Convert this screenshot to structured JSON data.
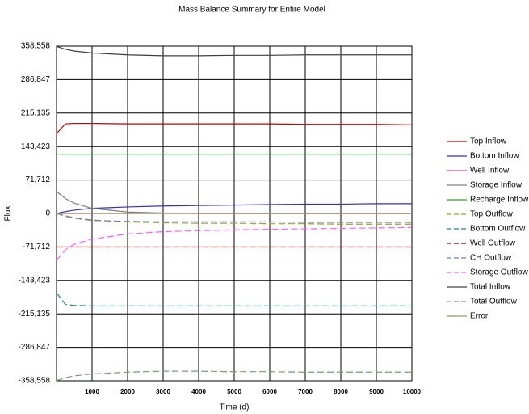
{
  "chart_data": {
    "type": "line",
    "title": "Mass Balance Summary for Entire Model",
    "x_label": "Time (d)",
    "y_label": "Flux",
    "x": [
      0,
      250,
      500,
      1000,
      2000,
      3000,
      4000,
      5000,
      6000,
      7000,
      8000,
      9000,
      10000
    ],
    "xlim": [
      0,
      10000
    ],
    "xticks": [
      1000,
      2000,
      3000,
      4000,
      5000,
      6000,
      7000,
      8000,
      9000,
      10000
    ],
    "ylim": [
      -358558,
      358558
    ],
    "yticks": [
      {
        "value": 358558,
        "label": "358,558"
      },
      {
        "value": 286847,
        "label": "286,847"
      },
      {
        "value": 215135,
        "label": "215,135"
      },
      {
        "value": 143423,
        "label": "143,423"
      },
      {
        "value": 71712,
        "label": "71,712"
      },
      0,
      {
        "value": -71712,
        "label": "-71,712"
      },
      {
        "value": -143423,
        "label": "-143,423"
      },
      {
        "value": -215135,
        "label": "-215,135"
      },
      {
        "value": -286847,
        "label": "-286,847"
      },
      {
        "value": -358558,
        "label": "-358,558"
      }
    ],
    "grid": true,
    "series": [
      {
        "name": "Top Inflow",
        "color": "#c00000",
        "dashed": false,
        "values": [
          171000,
          192000,
          193000,
          193000,
          192000,
          192000,
          192000,
          192000,
          192000,
          191000,
          191000,
          191000,
          190000
        ]
      },
      {
        "name": "Bottom Inflow",
        "color": "#3030c0",
        "dashed": false,
        "values": [
          0,
          4000,
          7000,
          11000,
          14000,
          16000,
          17000,
          18000,
          19000,
          20000,
          20000,
          21000,
          21000
        ]
      },
      {
        "name": "Well Inflow",
        "color": "#c040c0",
        "dashed": false,
        "values": [
          0,
          0,
          0,
          0,
          0,
          0,
          0,
          0,
          0,
          0,
          0,
          0,
          0
        ]
      },
      {
        "name": "Storage Inflow",
        "color": "#808080",
        "dashed": false,
        "values": [
          47000,
          32000,
          22000,
          11000,
          3000,
          1000,
          0,
          0,
          0,
          0,
          0,
          0,
          0
        ]
      },
      {
        "name": "Recharge Inflow",
        "color": "#30a030",
        "dashed": false,
        "values": [
          127000,
          127000,
          127000,
          127000,
          127000,
          127000,
          127000,
          127000,
          127000,
          127000,
          127000,
          127000,
          127000
        ]
      },
      {
        "name": "Top Outflow",
        "color": "#a0a030",
        "dashed": true,
        "values": [
          0,
          -5000,
          -9000,
          -14000,
          -18000,
          -20000,
          -21000,
          -21000,
          -22000,
          -22000,
          -23000,
          -23000,
          -23000
        ]
      },
      {
        "name": "Bottom Outflow",
        "color": "#208080",
        "dashed": true,
        "values": [
          -170000,
          -195000,
          -197000,
          -198000,
          -198000,
          -198000,
          -198000,
          -198000,
          -198000,
          -198000,
          -198000,
          -198000,
          -198000
        ]
      },
      {
        "name": "Well Outflow",
        "color": "#800000",
        "dashed": true,
        "values": [
          -72000,
          -72000,
          -72000,
          -72000,
          -72000,
          -72000,
          -72000,
          -72000,
          -72000,
          -72000,
          -72000,
          -72000,
          -72000
        ]
      },
      {
        "name": "CH Outflow",
        "color": "#7080a0",
        "dashed": true,
        "values": [
          0,
          -6000,
          -10000,
          -15000,
          -17000,
          -18000,
          -18000,
          -18000,
          -18000,
          -19000,
          -19000,
          -19000,
          -19000
        ]
      },
      {
        "name": "Storage Outflow",
        "color": "#ff60ff",
        "dashed": true,
        "values": [
          -100000,
          -78000,
          -66000,
          -55000,
          -44000,
          -39000,
          -37000,
          -35000,
          -34000,
          -33000,
          -32000,
          -31000,
          -30000
        ]
      },
      {
        "name": "Total Inflow",
        "color": "#404040",
        "dashed": false,
        "values": [
          358000,
          352000,
          348000,
          344000,
          340000,
          338000,
          338000,
          339000,
          339000,
          340000,
          340000,
          340000,
          340000
        ]
      },
      {
        "name": "Total Outflow",
        "color": "#70a070",
        "dashed": true,
        "values": [
          -358000,
          -352000,
          -348000,
          -344000,
          -340000,
          -338000,
          -338000,
          -339000,
          -339000,
          -340000,
          -340000,
          -340000,
          -340000
        ]
      },
      {
        "name": "Error",
        "color": "#a09060",
        "dashed": false,
        "values": [
          0,
          0,
          0,
          0,
          0,
          0,
          0,
          0,
          0,
          0,
          0,
          0,
          0
        ]
      }
    ]
  }
}
